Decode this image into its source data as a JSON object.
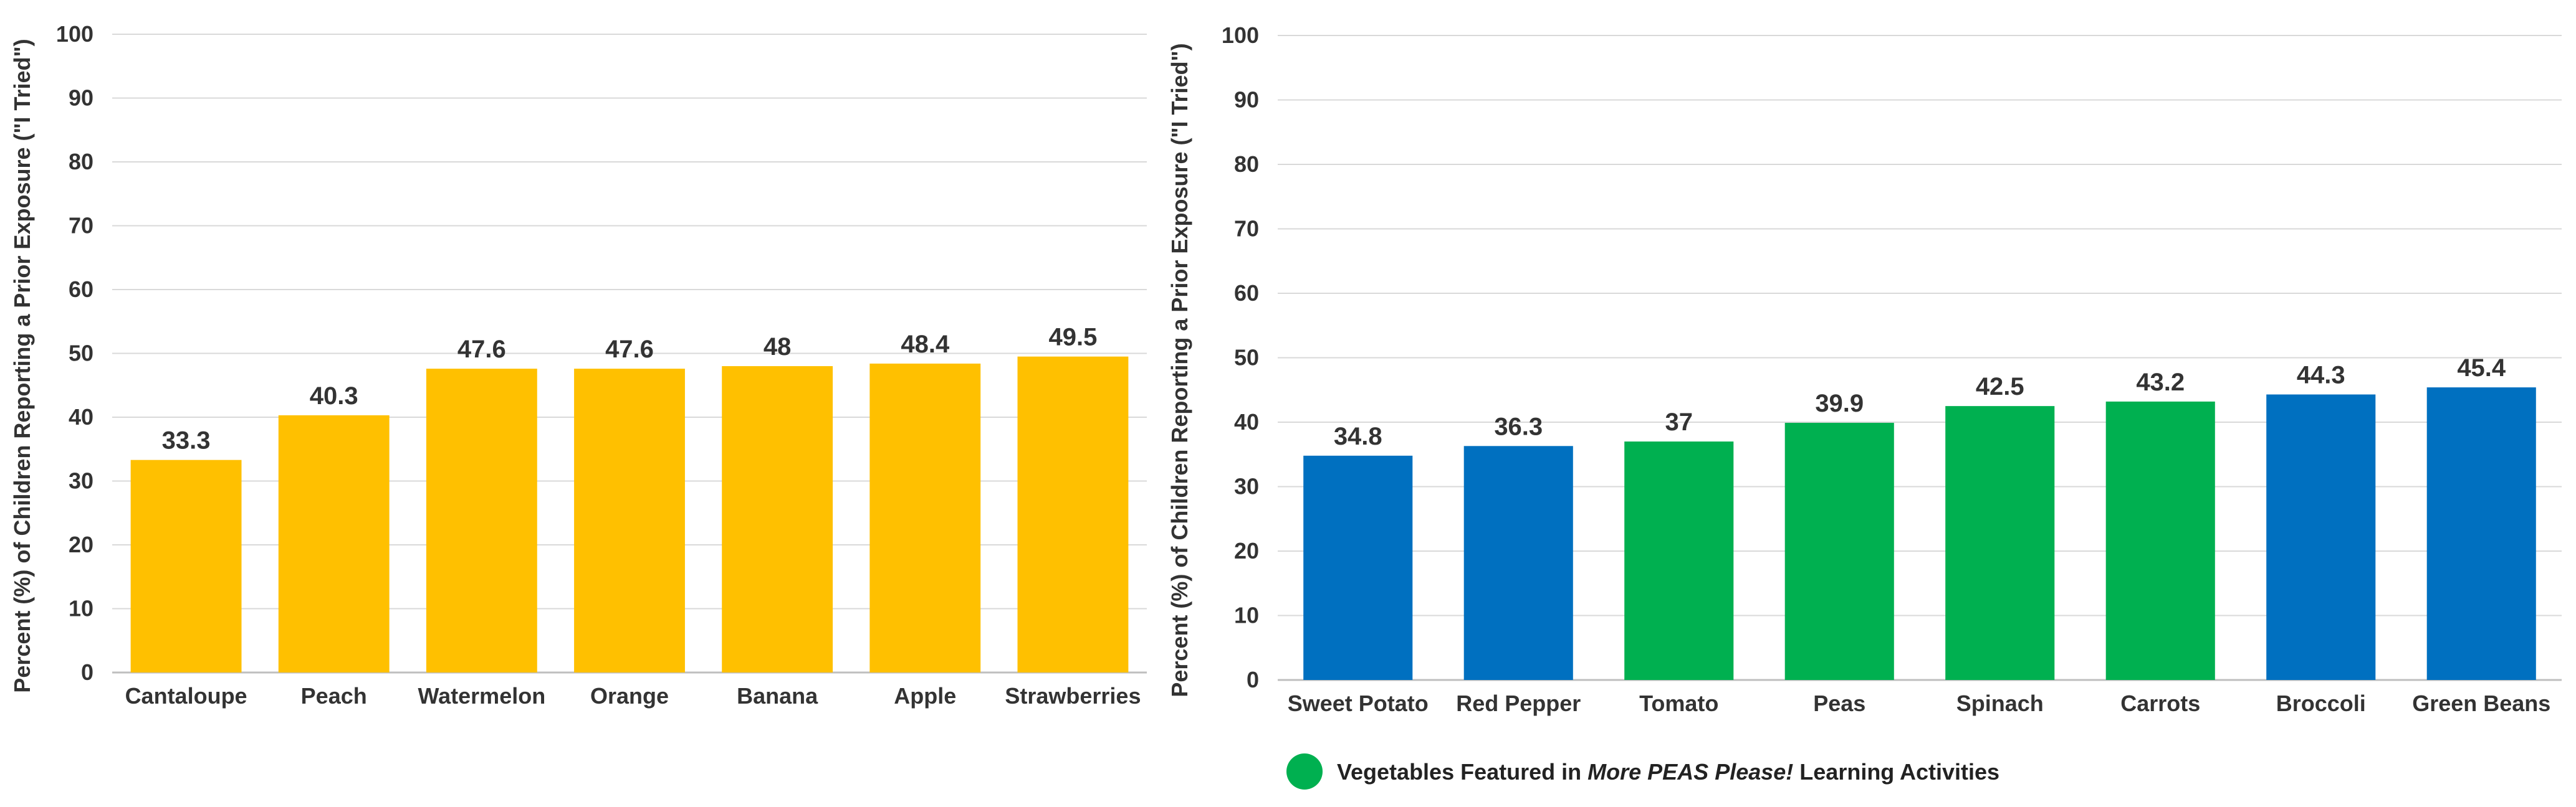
{
  "chart_data": [
    {
      "type": "bar",
      "title": "",
      "xlabel": "",
      "ylabel": "Percent (%) of Children Reporting a Prior Exposure (\"I Tried\")",
      "ylim": [
        0,
        100
      ],
      "yticks": [
        0,
        10,
        20,
        30,
        40,
        50,
        60,
        70,
        80,
        90,
        100
      ],
      "grid": true,
      "categories": [
        "Cantaloupe",
        "Peach",
        "Watermelon",
        "Orange",
        "Banana",
        "Apple",
        "Strawberries"
      ],
      "values": [
        33.3,
        40.3,
        47.6,
        47.6,
        48,
        48.4,
        49.5
      ],
      "value_labels": [
        "33.3",
        "40.3",
        "47.6",
        "47.6",
        "48",
        "48.4",
        "49.5"
      ],
      "bar_colors": [
        "#FFC000",
        "#FFC000",
        "#FFC000",
        "#FFC000",
        "#FFC000",
        "#FFC000",
        "#FFC000"
      ]
    },
    {
      "type": "bar",
      "title": "",
      "xlabel": "",
      "ylabel": "Percent (%) of Children Reporting a Prior Exposure (\"I Tried\")",
      "ylim": [
        0,
        100
      ],
      "yticks": [
        0,
        10,
        20,
        30,
        40,
        50,
        60,
        70,
        80,
        90,
        100
      ],
      "grid": true,
      "categories": [
        "Sweet Potato",
        "Red Pepper",
        "Tomato",
        "Peas",
        "Spinach",
        "Carrots",
        "Broccoli",
        "Green Beans"
      ],
      "values": [
        34.8,
        36.3,
        37,
        39.9,
        42.5,
        43.2,
        44.3,
        45.4
      ],
      "value_labels": [
        "34.8",
        "36.3",
        "37",
        "39.9",
        "42.5",
        "43.2",
        "44.3",
        "45.4"
      ],
      "bar_colors": [
        "#0070C0",
        "#0070C0",
        "#00B050",
        "#00B050",
        "#00B050",
        "#00B050",
        "#0070C0",
        "#0070C0"
      ],
      "legend": {
        "color": "#00B050",
        "text_before": "Vegetables Featured in ",
        "text_emphasis": "More PEAS Please!",
        "text_after": " Learning Activities"
      }
    }
  ],
  "colors": {
    "fruit": "#FFC000",
    "vegetable_default": "#0070C0",
    "vegetable_featured": "#00B050",
    "gridline": "#D9D9D9",
    "text": "#333333"
  }
}
